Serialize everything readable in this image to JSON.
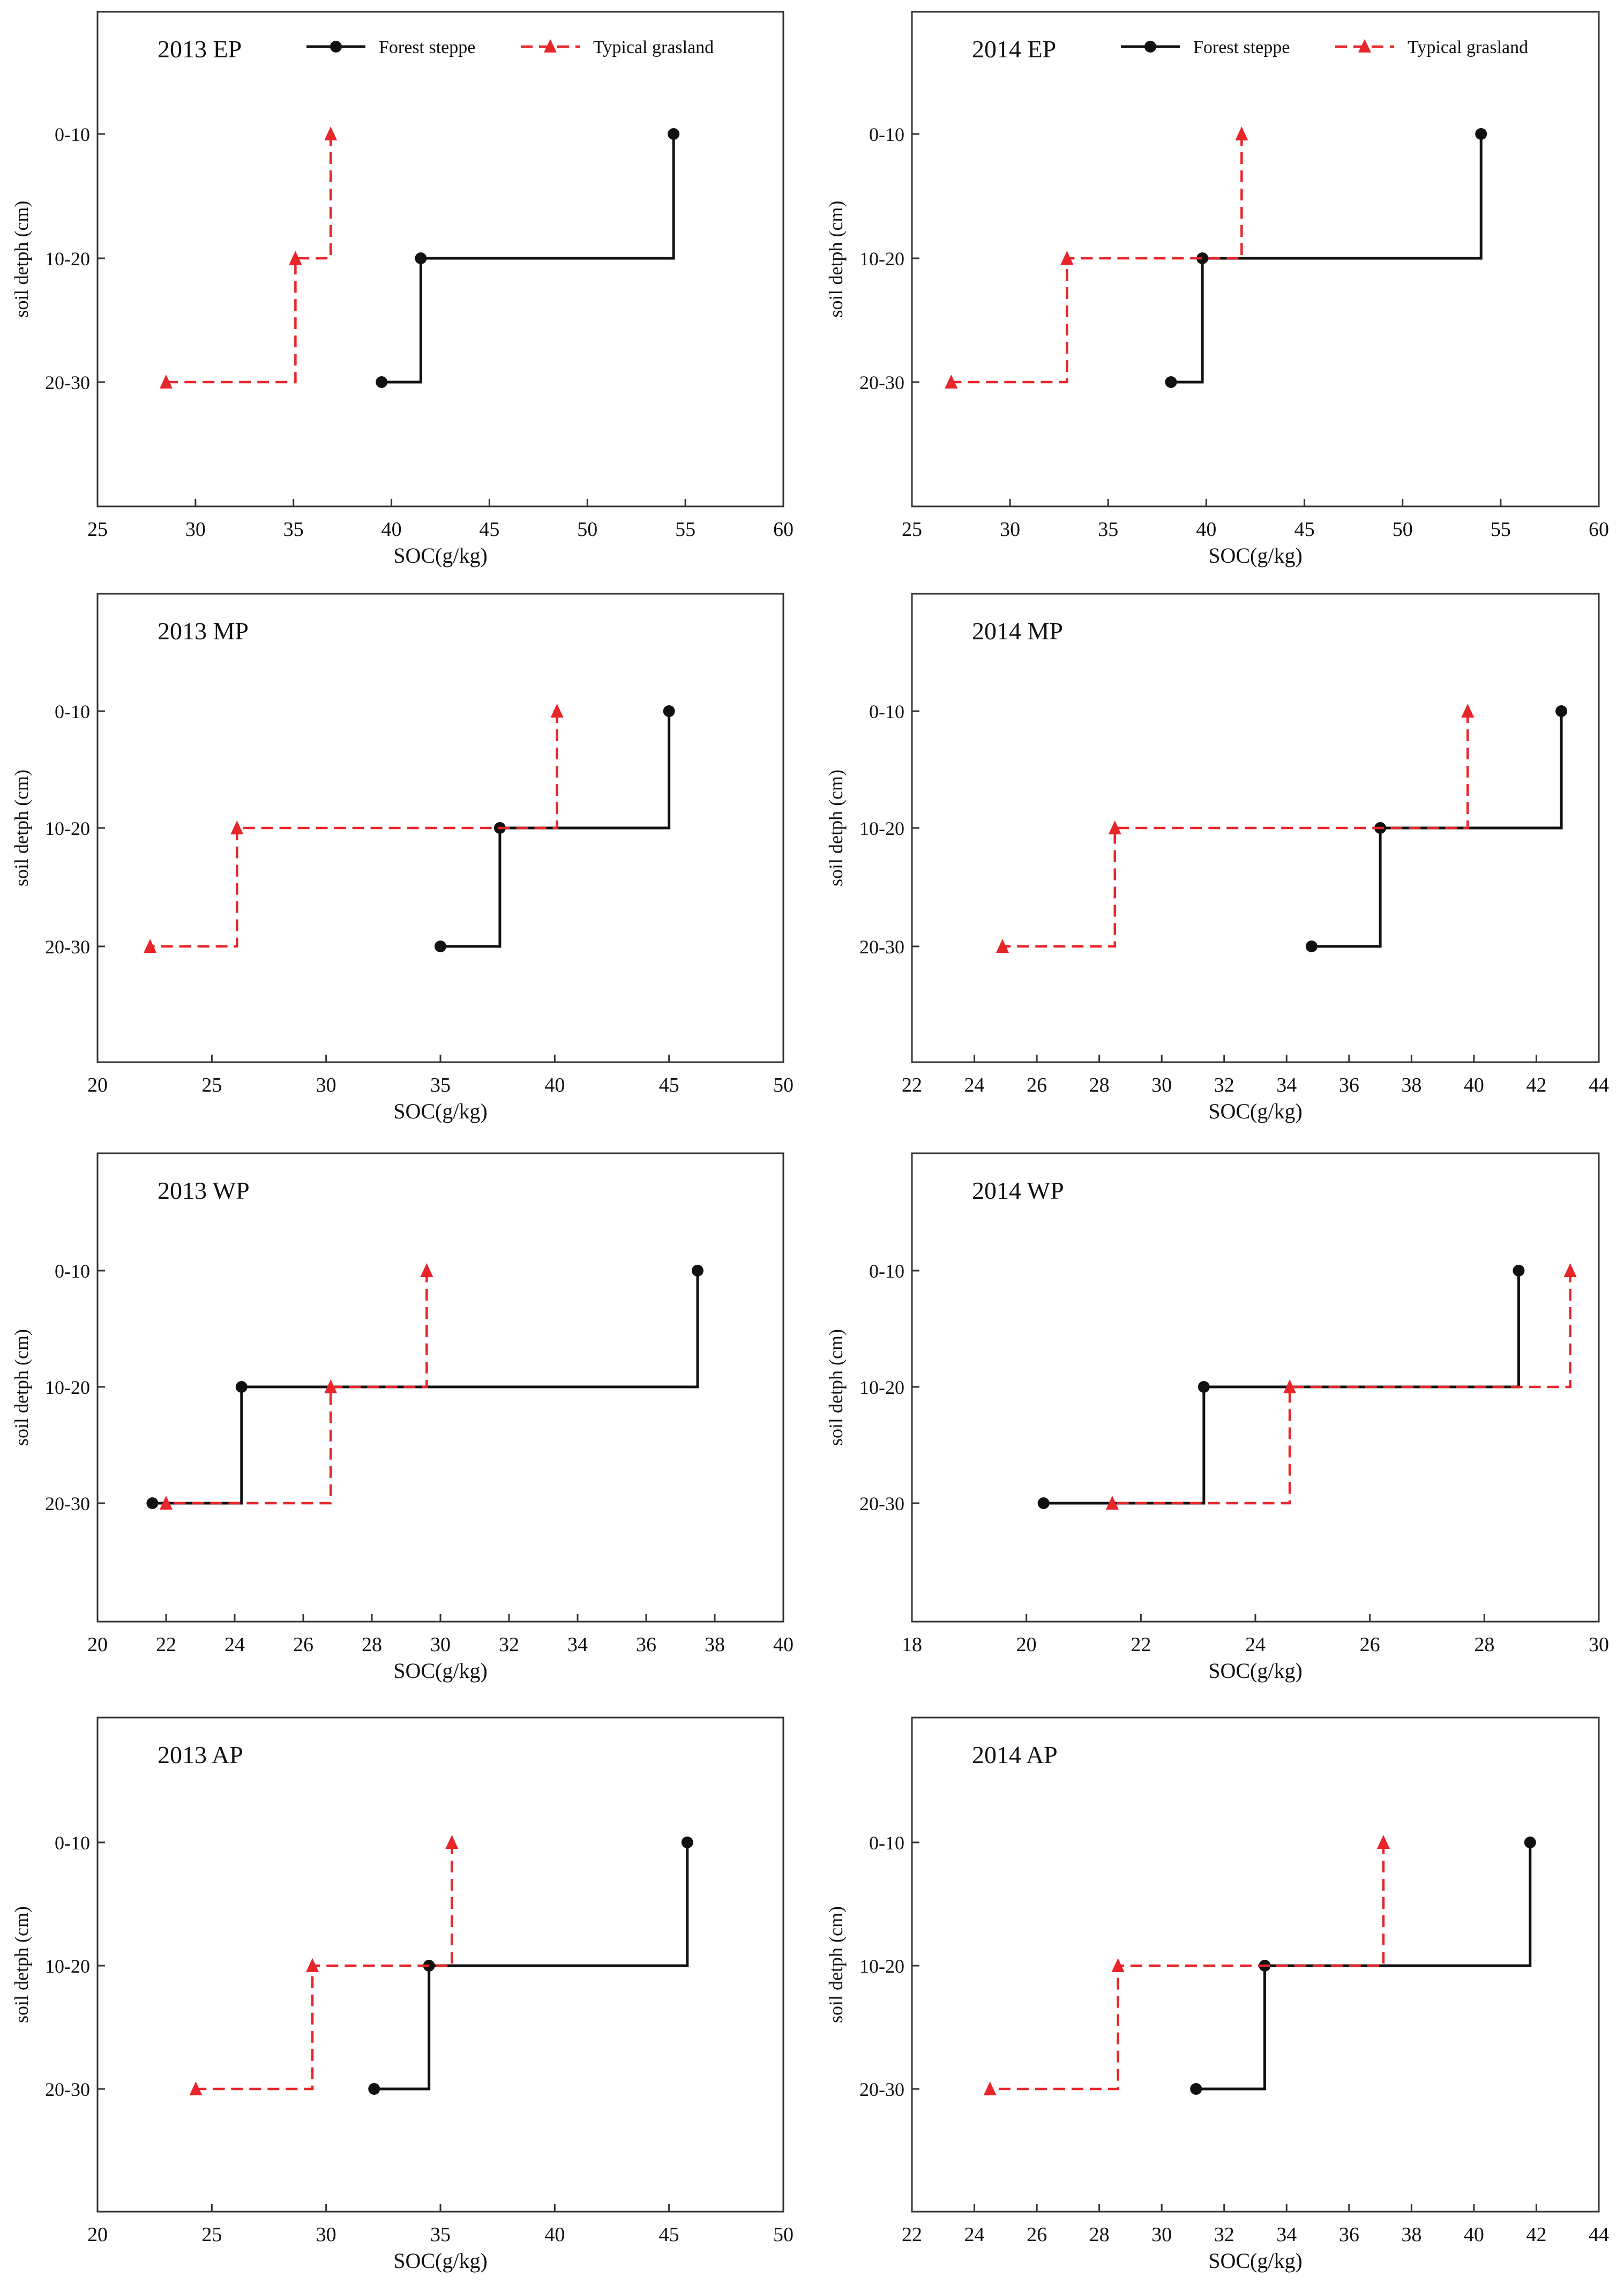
{
  "legend": {
    "forest": "Forest steppe",
    "typical": "Typical grasland"
  },
  "colors": {
    "forest": "#111111",
    "typical": "#e8262a",
    "frame": "#333333"
  },
  "chart_data": [
    {
      "type": "line",
      "step": true,
      "title": "2013 EP",
      "xlabel": "SOC(g/kg)",
      "ylabel": "soil detph (cm)",
      "categories": [
        "0-10",
        "10-20",
        "20-30"
      ],
      "xlim": [
        25,
        60
      ],
      "xticks": [
        25,
        30,
        35,
        40,
        45,
        50,
        55,
        60
      ],
      "legend_shown": true,
      "series": [
        {
          "name": "Forest steppe",
          "values": [
            54.4,
            41.5,
            39.5
          ]
        },
        {
          "name": "Typical grasland",
          "values": [
            36.9,
            35.1,
            28.5
          ]
        }
      ]
    },
    {
      "type": "line",
      "step": true,
      "title": "2014 EP",
      "xlabel": "SOC(g/kg)",
      "ylabel": "soil detph (cm)",
      "categories": [
        "0-10",
        "10-20",
        "20-30"
      ],
      "xlim": [
        25,
        60
      ],
      "xticks": [
        25,
        30,
        35,
        40,
        45,
        50,
        55,
        60
      ],
      "legend_shown": true,
      "series": [
        {
          "name": "Forest steppe",
          "values": [
            54.0,
            39.8,
            38.2
          ]
        },
        {
          "name": "Typical grasland",
          "values": [
            41.8,
            32.9,
            27.0
          ]
        }
      ]
    },
    {
      "type": "line",
      "step": true,
      "title": "2013 MP",
      "xlabel": "SOC(g/kg)",
      "ylabel": "soil detph (cm)",
      "categories": [
        "0-10",
        "10-20",
        "20-30"
      ],
      "xlim": [
        20,
        50
      ],
      "xticks": [
        20,
        25,
        30,
        35,
        40,
        45,
        50
      ],
      "legend_shown": false,
      "series": [
        {
          "name": "Forest steppe",
          "values": [
            45.0,
            37.6,
            35.0
          ]
        },
        {
          "name": "Typical grasland",
          "values": [
            40.1,
            26.1,
            22.3
          ]
        }
      ]
    },
    {
      "type": "line",
      "step": true,
      "title": "2014 MP",
      "xlabel": "SOC(g/kg)",
      "ylabel": "soil detph (cm)",
      "categories": [
        "0-10",
        "10-20",
        "20-30"
      ],
      "xlim": [
        22,
        44
      ],
      "xticks": [
        22,
        24,
        26,
        28,
        30,
        32,
        34,
        36,
        38,
        40,
        42,
        44
      ],
      "legend_shown": false,
      "series": [
        {
          "name": "Forest steppe",
          "values": [
            42.8,
            37.0,
            34.8
          ]
        },
        {
          "name": "Typical grasland",
          "values": [
            39.8,
            28.5,
            24.9
          ]
        }
      ]
    },
    {
      "type": "line",
      "step": true,
      "title": "2013 WP",
      "xlabel": "SOC(g/kg)",
      "ylabel": "soil detph (cm)",
      "categories": [
        "0-10",
        "10-20",
        "20-30"
      ],
      "xlim": [
        20,
        40
      ],
      "xticks": [
        20,
        22,
        24,
        26,
        28,
        30,
        32,
        34,
        36,
        38,
        40
      ],
      "legend_shown": false,
      "series": [
        {
          "name": "Forest steppe",
          "values": [
            37.5,
            24.2,
            21.6
          ]
        },
        {
          "name": "Typical grasland",
          "values": [
            29.6,
            26.8,
            22.0
          ]
        }
      ]
    },
    {
      "type": "line",
      "step": true,
      "title": "2014 WP",
      "xlabel": "SOC(g/kg)",
      "ylabel": "soil detph (cm)",
      "categories": [
        "0-10",
        "10-20",
        "20-30"
      ],
      "xlim": [
        18,
        30
      ],
      "xticks": [
        18,
        20,
        22,
        24,
        26,
        28,
        30
      ],
      "legend_shown": false,
      "series": [
        {
          "name": "Forest steppe",
          "values": [
            28.6,
            23.1,
            20.3
          ]
        },
        {
          "name": "Typical grasland",
          "values": [
            29.5,
            24.6,
            21.5
          ]
        }
      ]
    },
    {
      "type": "line",
      "step": true,
      "title": "2013 AP",
      "xlabel": "SOC(g/kg)",
      "ylabel": "soil detph (cm)",
      "categories": [
        "0-10",
        "10-20",
        "20-30"
      ],
      "xlim": [
        20,
        50
      ],
      "xticks": [
        20,
        25,
        30,
        35,
        40,
        45,
        50
      ],
      "legend_shown": false,
      "series": [
        {
          "name": "Forest steppe",
          "values": [
            45.8,
            34.5,
            32.1
          ]
        },
        {
          "name": "Typical grasland",
          "values": [
            35.5,
            29.4,
            24.3
          ]
        }
      ]
    },
    {
      "type": "line",
      "step": true,
      "title": "2014 AP",
      "xlabel": "SOC(g/kg)",
      "ylabel": "soil detph (cm)",
      "categories": [
        "0-10",
        "10-20",
        "20-30"
      ],
      "xlim": [
        22,
        44
      ],
      "xticks": [
        22,
        24,
        26,
        28,
        30,
        32,
        34,
        36,
        38,
        40,
        42,
        44
      ],
      "legend_shown": false,
      "series": [
        {
          "name": "Forest steppe",
          "values": [
            41.8,
            33.3,
            31.1
          ]
        },
        {
          "name": "Typical grasland",
          "values": [
            37.1,
            28.6,
            24.5
          ]
        }
      ]
    }
  ]
}
